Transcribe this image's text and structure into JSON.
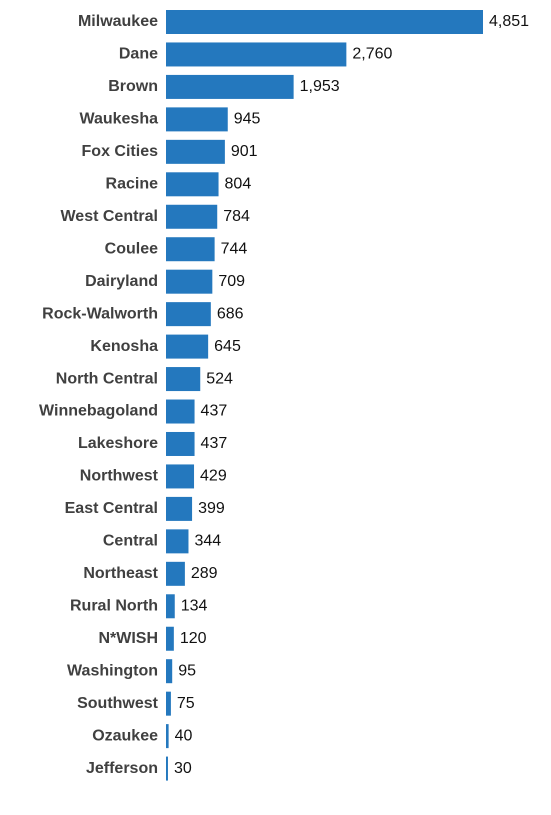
{
  "chart_data": {
    "type": "bar",
    "orientation": "horizontal",
    "color": "#2478be",
    "categories": [
      "Milwaukee",
      "Dane",
      "Brown",
      "Waukesha",
      "Fox Cities",
      "Racine",
      "West Central",
      "Coulee",
      "Dairyland",
      "Rock-Walworth",
      "Kenosha",
      "North Central",
      "Winnebagoland",
      "Lakeshore",
      "Northwest",
      "East Central",
      "Central",
      "Northeast",
      "Rural North",
      "N*WISH",
      "Washington",
      "Southwest",
      "Ozaukee",
      "Jefferson"
    ],
    "values": [
      4851,
      2760,
      1953,
      945,
      901,
      804,
      784,
      744,
      709,
      686,
      645,
      524,
      437,
      437,
      429,
      399,
      344,
      289,
      134,
      120,
      95,
      75,
      40,
      30
    ],
    "value_labels": [
      "4,851",
      "2,760",
      "1,953",
      "945",
      "901",
      "804",
      "784",
      "744",
      "709",
      "686",
      "645",
      "524",
      "437",
      "437",
      "429",
      "399",
      "344",
      "289",
      "134",
      "120",
      "95",
      "75",
      "40",
      "30"
    ]
  }
}
